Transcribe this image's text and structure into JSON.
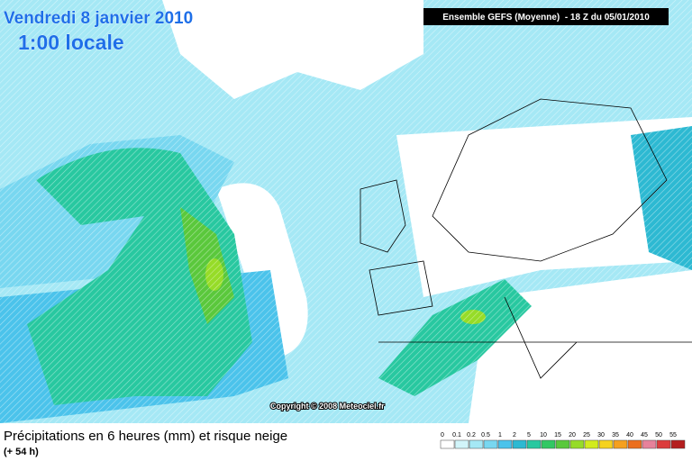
{
  "header": {
    "date": "Vendredi 8 janvier 2010",
    "time": "1:00 locale",
    "run": "Ensemble GEFS (Moyenne)  - 18 Z du 05/01/2010"
  },
  "copyright": "Copyright © 2008 Meteociel.fr",
  "footer": {
    "title": "Précipitations en 6 heures (mm) et risque neige",
    "lead": "(+ 54 h)"
  },
  "legend": {
    "items": [
      {
        "label": 0,
        "color": "#ffffff"
      },
      {
        "label": 0.1,
        "color": "#d2f5fa"
      },
      {
        "label": 0.2,
        "color": "#a5e8f5"
      },
      {
        "label": 0.5,
        "color": "#78d7f0"
      },
      {
        "label": 1,
        "color": "#4bc3eb"
      },
      {
        "label": 2,
        "color": "#2db9d2"
      },
      {
        "label": 5,
        "color": "#28c8a0"
      },
      {
        "label": 10,
        "color": "#32c864"
      },
      {
        "label": 15,
        "color": "#5ac83c"
      },
      {
        "label": 20,
        "color": "#96dc28"
      },
      {
        "label": 25,
        "color": "#d2eb1e"
      },
      {
        "label": 30,
        "color": "#f5d21e"
      },
      {
        "label": 35,
        "color": "#f5a01e"
      },
      {
        "label": 40,
        "color": "#eb6e1e"
      },
      {
        "label": 45,
        "color": "#e6829b"
      },
      {
        "label": 50,
        "color": "#dc3c3c"
      },
      {
        "label": 55,
        "color": "#b41e1e"
      }
    ]
  }
}
